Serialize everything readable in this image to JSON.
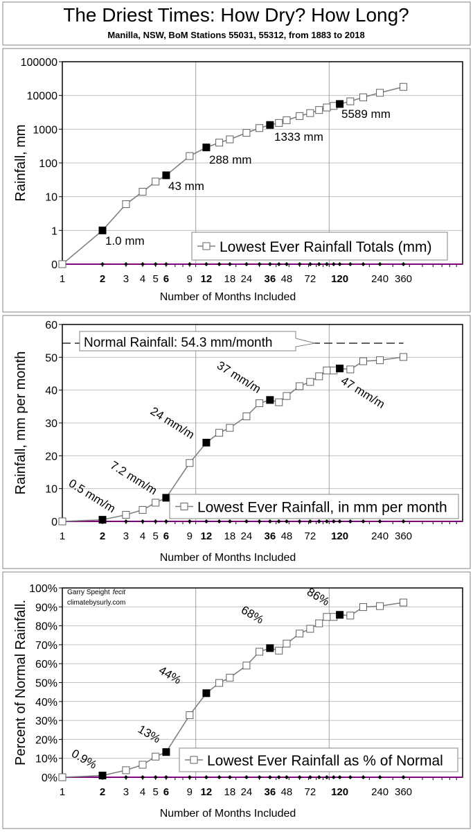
{
  "header": {
    "title": "The Driest Times: How Dry? How Long?",
    "subtitle": "Manilla, NSW, BoM Stations 55031, 55312, from 1883 to 2018"
  },
  "credit": {
    "author": "Garry Speight",
    "fecit": "fecit",
    "site": "climatebysurly.com"
  },
  "colors": {
    "line": "#808080",
    "baseline": "#800080",
    "highlight": "#000000",
    "grid": "#c0c0c0"
  },
  "chart_data": [
    {
      "type": "line",
      "xlabel": "Number of Months Included",
      "ylabel": "Rainfall, mm",
      "xscale": "log",
      "xlim": [
        1,
        1000
      ],
      "yscale": "log",
      "ylim": [
        0.1,
        100000
      ],
      "yticks": [
        {
          "v": 0.1,
          "label": "0"
        },
        {
          "v": 1,
          "label": "1"
        },
        {
          "v": 10,
          "label": "10"
        },
        {
          "v": 100,
          "label": "100"
        },
        {
          "v": 1000,
          "label": "1000"
        },
        {
          "v": 10000,
          "label": "10000"
        },
        {
          "v": 100000,
          "label": "100000"
        }
      ],
      "xticks": [
        {
          "v": 1,
          "label": "1"
        },
        {
          "v": 2,
          "label": "2",
          "bold": true
        },
        {
          "v": 3,
          "label": "3"
        },
        {
          "v": 4,
          "label": "4"
        },
        {
          "v": 5,
          "label": "5"
        },
        {
          "v": 6,
          "label": "6",
          "bold": true
        },
        {
          "v": 9,
          "label": "9"
        },
        {
          "v": 12,
          "label": "12",
          "bold": true
        },
        {
          "v": 18,
          "label": "18"
        },
        {
          "v": 24,
          "label": "24"
        },
        {
          "v": 36,
          "label": "36",
          "bold": true
        },
        {
          "v": 48,
          "label": "48"
        },
        {
          "v": 72,
          "label": "72"
        },
        {
          "v": 120,
          "label": "120",
          "bold": true
        },
        {
          "v": 240,
          "label": "240"
        },
        {
          "v": 360,
          "label": "360"
        }
      ],
      "grid": true,
      "legend": "bottom-right",
      "series": [
        {
          "name": "Lowest Ever Rainfall Totals (mm)",
          "x": [
            1,
            2,
            3,
            4,
            5,
            6,
            9,
            12,
            15,
            18,
            24,
            30,
            36,
            42,
            48,
            60,
            72,
            84,
            96,
            108,
            120,
            144,
            180,
            240,
            360
          ],
          "y": [
            0,
            1.0,
            6,
            14,
            28,
            43,
            160,
            288,
            400,
            500,
            780,
            1080,
            1333,
            1530,
            1850,
            2450,
            3000,
            3700,
            4400,
            4900,
            5589,
            6700,
            8800,
            12000,
            18000
          ],
          "highlight": [
            2,
            6,
            12,
            36,
            120
          ]
        }
      ],
      "annotations": [
        {
          "x": 2,
          "text": "1.0 mm"
        },
        {
          "x": 6,
          "text": "43 mm"
        },
        {
          "x": 12,
          "text": "288 mm"
        },
        {
          "x": 36,
          "text": "1333 mm"
        },
        {
          "x": 120,
          "text": "5589 mm"
        }
      ]
    },
    {
      "type": "line",
      "xlabel": "Number of Months Included",
      "ylabel": "Rainfall, mm per month",
      "xscale": "log",
      "xlim": [
        1,
        1000
      ],
      "yscale": "linear",
      "ylim": [
        0,
        60
      ],
      "yticks": [
        {
          "v": 0,
          "label": "0"
        },
        {
          "v": 10,
          "label": "10"
        },
        {
          "v": 20,
          "label": "20"
        },
        {
          "v": 30,
          "label": "30"
        },
        {
          "v": 40,
          "label": "40"
        },
        {
          "v": 50,
          "label": "50"
        },
        {
          "v": 60,
          "label": "60"
        }
      ],
      "grid": true,
      "legend": "bottom-right",
      "reference": {
        "value": 54.3,
        "text": "Normal  Rainfall: 54.3 mm/month"
      },
      "series": [
        {
          "name": "Lowest Ever Rainfall, in mm per month",
          "x": [
            1,
            2,
            3,
            4,
            5,
            6,
            9,
            12,
            15,
            18,
            24,
            30,
            36,
            42,
            48,
            60,
            72,
            84,
            96,
            108,
            120,
            144,
            180,
            240,
            360
          ],
          "y": [
            0,
            0.5,
            2.0,
            3.5,
            5.7,
            7.2,
            17.8,
            24,
            27,
            28.5,
            32,
            36,
            37,
            36.3,
            38.2,
            41.2,
            42.5,
            44.2,
            46,
            46,
            46.6,
            46.3,
            48.8,
            49.1,
            50.1
          ],
          "highlight": [
            2,
            6,
            12,
            36,
            120
          ]
        }
      ],
      "annotations": [
        {
          "x": 2,
          "text": "0.5 mm/m"
        },
        {
          "x": 6,
          "text": "7.2 mm/m"
        },
        {
          "x": 12,
          "text": "24 mm/m"
        },
        {
          "x": 36,
          "text": "37 mm/m"
        },
        {
          "x": 120,
          "text": "47 mm/m"
        }
      ]
    },
    {
      "type": "line",
      "xlabel": "Number of Months Included",
      "ylabel": "Percent of Normal Rainfall.",
      "xscale": "log",
      "xlim": [
        1,
        1000
      ],
      "yscale": "linear",
      "ylim": [
        0,
        100
      ],
      "yticks": [
        {
          "v": 0,
          "label": "0%"
        },
        {
          "v": 10,
          "label": "10%"
        },
        {
          "v": 20,
          "label": "20%"
        },
        {
          "v": 30,
          "label": "30%"
        },
        {
          "v": 40,
          "label": "40%"
        },
        {
          "v": 50,
          "label": "50%"
        },
        {
          "v": 60,
          "label": "60%"
        },
        {
          "v": 70,
          "label": "70%"
        },
        {
          "v": 80,
          "label": "80%"
        },
        {
          "v": 90,
          "label": "90%"
        },
        {
          "v": 100,
          "label": "100%"
        }
      ],
      "grid": true,
      "legend": "bottom-right",
      "series": [
        {
          "name": "Lowest Ever Rainfall as % of Normal",
          "x": [
            1,
            2,
            3,
            4,
            5,
            6,
            9,
            12,
            15,
            18,
            24,
            30,
            36,
            42,
            48,
            60,
            72,
            84,
            96,
            108,
            120,
            144,
            180,
            240,
            360
          ],
          "y": [
            0,
            0.9,
            3.7,
            6.6,
            10.9,
            13.3,
            32.8,
            44.4,
            49.8,
            52.6,
            59,
            66.3,
            68.2,
            66.9,
            70.6,
            75.9,
            78.4,
            81.3,
            84.7,
            84.7,
            85.8,
            85.4,
            89.9,
            90.4,
            92.3
          ],
          "highlight": [
            2,
            6,
            12,
            36,
            120
          ]
        }
      ],
      "annotations": [
        {
          "x": 2,
          "text": "0.9%"
        },
        {
          "x": 6,
          "text": "13%"
        },
        {
          "x": 12,
          "text": "44%"
        },
        {
          "x": 36,
          "text": "68%"
        },
        {
          "x": 120,
          "text": "86%"
        }
      ]
    }
  ]
}
